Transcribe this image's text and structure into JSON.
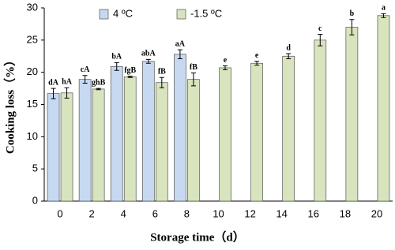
{
  "chart_data": {
    "type": "bar",
    "xlabel": "Storage time（d）",
    "ylabel": "Cooking loss（%）",
    "categories": [
      "0",
      "2",
      "4",
      "6",
      "8",
      "10",
      "12",
      "14",
      "16",
      "18",
      "20"
    ],
    "ylim": [
      0,
      30
    ],
    "yticks": [
      0,
      5,
      10,
      15,
      20,
      25,
      30
    ],
    "legend": "top-left",
    "series": [
      {
        "name": "4 ºC",
        "color": "#c6d9f1",
        "values": [
          16.7,
          18.9,
          20.9,
          21.7,
          22.8,
          null,
          null,
          null,
          null,
          null,
          null
        ],
        "errors": [
          0.8,
          0.6,
          0.6,
          0.3,
          0.7,
          null,
          null,
          null,
          null,
          null,
          null
        ],
        "labels": [
          "dA",
          "cA",
          "bA",
          "abA",
          "aA",
          null,
          null,
          null,
          null,
          null,
          null
        ]
      },
      {
        "name": "-1.5 ºC",
        "color": "#d7e4bd",
        "values": [
          16.8,
          17.4,
          19.3,
          18.4,
          18.9,
          20.7,
          21.4,
          22.5,
          25.0,
          27.0,
          28.8
        ],
        "errors": [
          0.8,
          0.1,
          0.1,
          0.8,
          1.0,
          0.3,
          0.3,
          0.4,
          0.9,
          1.2,
          0.3
        ],
        "labels": [
          "hA",
          "ghB",
          "fgB",
          "fB",
          "fB",
          "e",
          "e",
          "d",
          "c",
          "b",
          "a"
        ]
      }
    ]
  }
}
